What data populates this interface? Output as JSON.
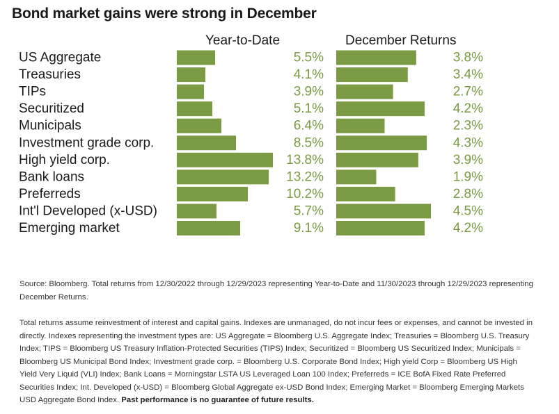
{
  "title": "Bond market gains were strong in December",
  "colors": {
    "bar": "#7a9a43",
    "value_text": "#7a9a43",
    "label_text": "#1a1a1a"
  },
  "chart_data": {
    "type": "bar",
    "orientation": "horizontal",
    "categories": [
      "US Aggregate",
      "Treasuries",
      "TIPs",
      "Securitized",
      "Municipals",
      "Investment grade corp.",
      "High yield corp.",
      "Bank loans",
      "Preferreds",
      "Int'l Developed (x-USD)",
      "Emerging market"
    ],
    "series": [
      {
        "name": "Year-to-Date",
        "values": [
          5.5,
          4.1,
          3.9,
          5.1,
          6.4,
          8.5,
          13.8,
          13.2,
          10.2,
          5.7,
          9.1
        ],
        "labels": [
          "5.5%",
          "4.1%",
          "3.9%",
          "5.1%",
          "6.4%",
          "8.5%",
          "13.8%",
          "13.2%",
          "10.2%",
          "5.7%",
          "9.1%"
        ]
      },
      {
        "name": "December Returns",
        "values": [
          3.8,
          3.4,
          2.7,
          4.2,
          2.3,
          4.3,
          3.9,
          1.9,
          2.8,
          4.5,
          4.2
        ],
        "labels": [
          "3.8%",
          "3.4%",
          "2.7%",
          "4.2%",
          "2.3%",
          "4.3%",
          "3.9%",
          "1.9%",
          "2.8%",
          "4.5%",
          "4.2%"
        ]
      }
    ],
    "xlim_ytd": [
      0,
      13.8
    ],
    "xlim_december": [
      0,
      4.5
    ],
    "legend": "column headers",
    "grid": false
  },
  "footnotes": {
    "source": "Source: Bloomberg. Total returns from 12/30/2022 through 12/29/2023 representing Year-to-Date and 11/30/2023 through 12/29/2023 representing December Returns.",
    "disclosure": "Total returns assume reinvestment of interest and capital gains. Indexes are unmanaged, do not incur fees or expenses, and cannot be invested in directly. Indexes representing the investment types are: US Aggregate = Bloomberg U.S. Aggregate Index; Treasuries = Bloomberg U.S. Treasury Index; TIPS = Bloomberg US Treasury Inflation-Protected Securities (TIPS) Index; Securitized = Bloomberg US Securitized Index; Municipals = Bloomberg US Municipal Bond Index; Investment grade corp. = Bloomberg U.S. Corporate Bond Index; High yield Corp = Bloomberg US High Yield Very Liquid (VLI) Index; Bank Loans = Morningstar LSTA US Leveraged Loan 100 Index; Preferreds = ICE BofA Fixed Rate Preferred Securities Index; Int. Developed (x-USD) = Bloomberg Global Aggregate ex-USD Bond Index; Emerging Market = Bloomberg Emerging Markets USD Aggregate Bond Index.",
    "emphasis": "Past performance is no guarantee of future results."
  }
}
